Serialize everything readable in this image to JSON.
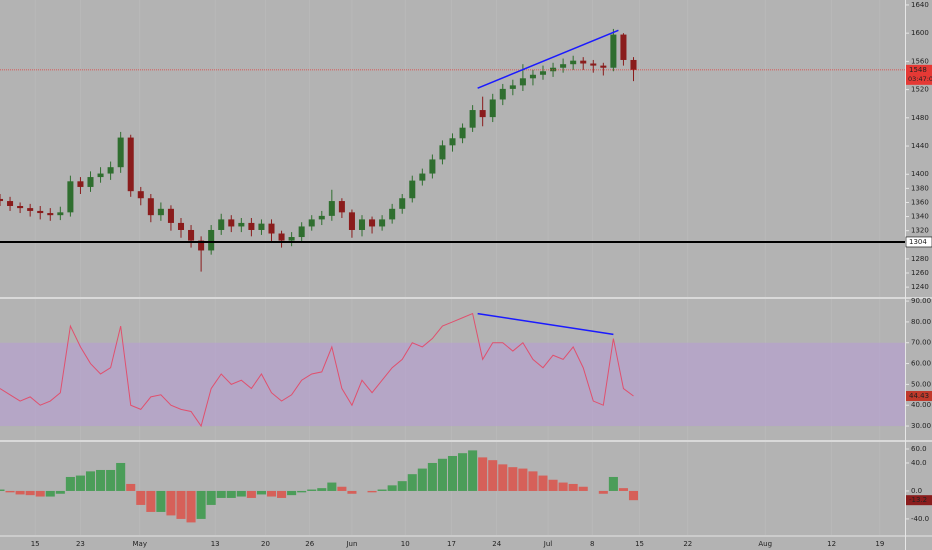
{
  "chart_data": [
    {
      "type": "candlestick",
      "x": [
        0,
        1,
        2,
        3,
        4,
        5,
        6,
        7,
        8,
        9,
        10,
        11,
        12,
        13,
        14,
        15,
        16,
        17,
        18,
        19,
        20,
        21,
        22,
        23,
        24,
        25,
        26,
        27,
        28,
        29,
        30,
        31,
        32,
        33,
        34,
        35,
        36,
        37,
        38,
        39,
        40,
        41,
        42,
        43,
        44,
        45,
        46,
        47,
        48,
        49,
        50,
        51,
        52,
        53,
        54,
        55,
        56,
        57,
        58,
        59,
        60,
        61,
        62,
        63
      ],
      "open": [
        1365,
        1362,
        1355,
        1352,
        1348,
        1345,
        1342,
        1346,
        1390,
        1382,
        1396,
        1401,
        1410,
        1452,
        1376,
        1366,
        1342,
        1351,
        1331,
        1321,
        1306,
        1292,
        1321,
        1336,
        1326,
        1331,
        1321,
        1330,
        1316,
        1306,
        1311,
        1326,
        1336,
        1341,
        1362,
        1346,
        1321,
        1336,
        1326,
        1336,
        1351,
        1366,
        1391,
        1401,
        1421,
        1441,
        1451,
        1466,
        1491,
        1481,
        1506,
        1521,
        1526,
        1536,
        1541,
        1546,
        1551,
        1556,
        1561,
        1557,
        1554,
        1551,
        1598,
        1562
      ],
      "high": [
        1372,
        1368,
        1360,
        1358,
        1355,
        1352,
        1354,
        1398,
        1396,
        1404,
        1410,
        1418,
        1460,
        1456,
        1382,
        1372,
        1360,
        1356,
        1338,
        1328,
        1312,
        1328,
        1344,
        1342,
        1338,
        1338,
        1336,
        1336,
        1320,
        1318,
        1332,
        1342,
        1348,
        1378,
        1366,
        1350,
        1342,
        1340,
        1342,
        1358,
        1372,
        1398,
        1408,
        1428,
        1448,
        1458,
        1472,
        1498,
        1510,
        1514,
        1528,
        1534,
        1556,
        1548,
        1554,
        1558,
        1564,
        1568,
        1566,
        1562,
        1558,
        1606,
        1600,
        1566
      ],
      "low": [
        1355,
        1348,
        1345,
        1340,
        1336,
        1334,
        1335,
        1340,
        1372,
        1375,
        1388,
        1392,
        1402,
        1368,
        1356,
        1332,
        1334,
        1320,
        1310,
        1296,
        1262,
        1286,
        1314,
        1318,
        1318,
        1312,
        1314,
        1304,
        1296,
        1298,
        1304,
        1320,
        1328,
        1334,
        1338,
        1310,
        1312,
        1316,
        1320,
        1330,
        1344,
        1360,
        1384,
        1394,
        1414,
        1432,
        1444,
        1460,
        1468,
        1474,
        1498,
        1512,
        1518,
        1526,
        1534,
        1538,
        1544,
        1548,
        1548,
        1544,
        1540,
        1546,
        1554,
        1532
      ],
      "close": [
        1362,
        1355,
        1352,
        1348,
        1345,
        1342,
        1346,
        1390,
        1382,
        1396,
        1401,
        1410,
        1452,
        1376,
        1366,
        1342,
        1351,
        1331,
        1321,
        1306,
        1292,
        1321,
        1336,
        1326,
        1331,
        1321,
        1330,
        1316,
        1306,
        1311,
        1326,
        1336,
        1341,
        1362,
        1346,
        1321,
        1336,
        1326,
        1336,
        1351,
        1366,
        1391,
        1401,
        1421,
        1441,
        1451,
        1466,
        1491,
        1481,
        1506,
        1521,
        1526,
        1536,
        1541,
        1546,
        1551,
        1556,
        1561,
        1557,
        1554,
        1551,
        1598,
        1562,
        1548
      ],
      "up_color": "#2f6e2f",
      "down_color": "#8a1c1c",
      "last_color": "#e53935",
      "countdown": "03:47:06",
      "hlines": [
        {
          "value": 1304,
          "color": "#000000"
        }
      ],
      "trendlines": [
        {
          "x": [
            47.5,
            61.5
          ],
          "y": [
            1522,
            1604
          ],
          "color": "#1a1aff"
        }
      ],
      "xlim": [
        0,
        90
      ],
      "ylim": [
        1226,
        1647
      ],
      "yticks": [
        1240,
        1260,
        1280,
        1320,
        1340,
        1360,
        1380,
        1400,
        1440,
        1480,
        1520,
        1560,
        1600,
        1640
      ]
    },
    {
      "type": "line",
      "x": [
        0,
        1,
        2,
        3,
        4,
        5,
        6,
        7,
        8,
        9,
        10,
        11,
        12,
        13,
        14,
        15,
        16,
        17,
        18,
        19,
        20,
        21,
        22,
        23,
        24,
        25,
        26,
        27,
        28,
        29,
        30,
        31,
        32,
        33,
        34,
        35,
        36,
        37,
        38,
        39,
        40,
        41,
        42,
        43,
        44,
        45,
        46,
        47,
        48,
        49,
        50,
        51,
        52,
        53,
        54,
        55,
        56,
        57,
        58,
        59,
        60,
        61,
        62,
        63
      ],
      "values": [
        48,
        45,
        42,
        44,
        40,
        42,
        46,
        78,
        68,
        60,
        55,
        58,
        78,
        40,
        38,
        44,
        45,
        40,
        38,
        37,
        30,
        48,
        55,
        50,
        52,
        48,
        55,
        46,
        42,
        45,
        52,
        55,
        56,
        68,
        48,
        40,
        52,
        46,
        52,
        58,
        62,
        70,
        68,
        72,
        78,
        80,
        82,
        84,
        62,
        70,
        70,
        66,
        70,
        62,
        58,
        64,
        62,
        68,
        58,
        42,
        40,
        72,
        48,
        44.43
      ],
      "color": "#e0506e",
      "band": [
        30,
        70
      ],
      "band_color": "#b79ad6",
      "trendlines": [
        {
          "x": [
            47.5,
            61
          ],
          "y": [
            84,
            74
          ],
          "color": "#1a1aff"
        }
      ],
      "xlim": [
        0,
        90
      ],
      "ylim": [
        23.3,
        91
      ],
      "yticks": [
        {
          "value": 30,
          "label": "30.00"
        },
        {
          "value": 40,
          "label": "40.00"
        },
        {
          "value": 50,
          "label": "50.00"
        },
        {
          "value": 60,
          "label": "60.00"
        },
        {
          "value": 70,
          "label": "70.00"
        },
        {
          "value": 80,
          "label": "80.00"
        },
        {
          "value": 90,
          "label": "90.00"
        }
      ]
    },
    {
      "type": "bar",
      "x": [
        0,
        1,
        2,
        3,
        4,
        5,
        6,
        7,
        8,
        9,
        10,
        11,
        12,
        13,
        14,
        15,
        16,
        17,
        18,
        19,
        20,
        21,
        22,
        23,
        24,
        25,
        26,
        27,
        28,
        29,
        30,
        31,
        32,
        33,
        34,
        35,
        36,
        37,
        38,
        39,
        40,
        41,
        42,
        43,
        44,
        45,
        46,
        47,
        48,
        49,
        50,
        51,
        52,
        53,
        54,
        55,
        56,
        57,
        58,
        59,
        60,
        61,
        62,
        63
      ],
      "values": [
        2,
        -2,
        -5,
        -6,
        -8,
        -8,
        -4,
        20,
        22,
        28,
        30,
        30,
        40,
        10,
        -20,
        -30,
        -30,
        -35,
        -40,
        -45,
        -40,
        -20,
        -10,
        -10,
        -8,
        -10,
        -5,
        -8,
        -10,
        -6,
        -2,
        2,
        4,
        12,
        6,
        -4,
        0,
        -2,
        2,
        8,
        14,
        24,
        32,
        40,
        46,
        50,
        54,
        58,
        48,
        44,
        38,
        34,
        32,
        28,
        22,
        16,
        12,
        10,
        6,
        0,
        -4,
        20,
        4,
        -13.2
      ],
      "up_color": "#3f9a4f",
      "down_color": "#d9574f",
      "last_color": "#8a1c1c",
      "xlim": [
        0,
        90
      ],
      "ylim": [
        -63,
        70
      ],
      "yticks": [
        {
          "value": -40,
          "label": "-40.0"
        },
        {
          "value": 0,
          "label": "0.0"
        },
        {
          "value": 40,
          "label": "40.0"
        },
        {
          "value": 60,
          "label": "60.0"
        }
      ],
      "xticks": [
        {
          "value": 3.5,
          "label": "15"
        },
        {
          "value": 8,
          "label": "23"
        },
        {
          "value": 13.9,
          "label": "May"
        },
        {
          "value": 21.4,
          "label": "13"
        },
        {
          "value": 26.4,
          "label": "20"
        },
        {
          "value": 30.8,
          "label": "26"
        },
        {
          "value": 35,
          "label": "Jun"
        },
        {
          "value": 40.3,
          "label": "10"
        },
        {
          "value": 44.9,
          "label": "17"
        },
        {
          "value": 49.4,
          "label": "24"
        },
        {
          "value": 54.5,
          "label": "Jul"
        },
        {
          "value": 58.9,
          "label": "8"
        },
        {
          "value": 63.6,
          "label": "15"
        },
        {
          "value": 68.4,
          "label": "22"
        },
        {
          "value": 76.1,
          "label": "Aug"
        },
        {
          "value": 82.7,
          "label": "12"
        },
        {
          "value": 87.5,
          "label": "19"
        }
      ]
    }
  ]
}
